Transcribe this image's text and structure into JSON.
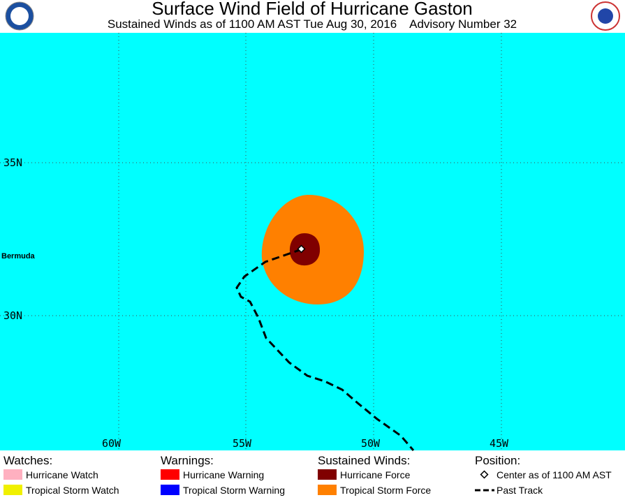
{
  "header": {
    "title": "Surface Wind Field of Hurricane Gaston",
    "subtitle": "Sustained Winds as of 1100 AM AST Tue Aug 30, 2016    Advisory Number 32"
  },
  "map": {
    "lat_labels": [
      "35N",
      "30N"
    ],
    "lon_labels": [
      "60W",
      "55W",
      "50W",
      "45W"
    ],
    "place_label": "Bermuda"
  },
  "legend": {
    "watches": {
      "heading": "Watches:",
      "items": [
        "Hurricane Watch",
        "Tropical Storm Watch"
      ]
    },
    "warnings": {
      "heading": "Warnings:",
      "items": [
        "Hurricane Warning",
        "Tropical Storm Warning"
      ]
    },
    "winds": {
      "heading": "Sustained Winds:",
      "items": [
        "Hurricane Force",
        "Tropical Storm Force"
      ]
    },
    "position": {
      "heading": "Position:",
      "items": [
        "Center as of 1100 AM AST",
        "Past Track"
      ]
    }
  }
}
